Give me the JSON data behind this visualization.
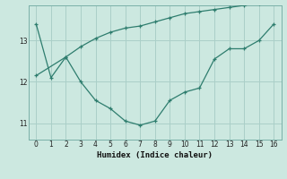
{
  "line1_x": [
    0,
    1,
    2,
    3,
    4,
    5,
    6,
    7,
    8,
    9,
    10,
    11,
    12,
    13,
    14,
    15,
    16
  ],
  "line1_y": [
    13.4,
    12.1,
    12.6,
    12.0,
    11.55,
    11.35,
    11.05,
    10.95,
    11.05,
    11.55,
    11.75,
    11.85,
    12.55,
    12.8,
    12.8,
    13.0,
    13.4
  ],
  "line2_x": [
    0,
    2,
    3,
    4,
    5,
    6,
    7,
    8,
    9,
    10,
    11,
    12,
    13,
    14,
    15,
    16
  ],
  "line2_y": [
    12.15,
    12.6,
    12.85,
    13.05,
    13.2,
    13.3,
    13.35,
    13.45,
    13.55,
    13.65,
    13.7,
    13.75,
    13.8,
    13.85,
    13.9,
    13.95
  ],
  "color": "#2e7d6e",
  "background": "#cce8e0",
  "grid_color": "#aacfc8",
  "xlabel": "Humidex (Indice chaleur)",
  "ylim": [
    10.6,
    13.85
  ],
  "xlim": [
    -0.5,
    16.5
  ],
  "yticks": [
    11,
    12,
    13
  ],
  "xticks": [
    0,
    1,
    2,
    3,
    4,
    5,
    6,
    7,
    8,
    9,
    10,
    11,
    12,
    13,
    14,
    15,
    16
  ]
}
